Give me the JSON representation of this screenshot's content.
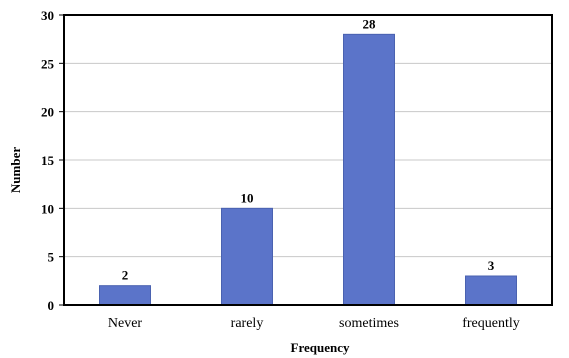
{
  "chart_data": {
    "type": "bar",
    "categories": [
      "Never",
      "rarely",
      "sometimes",
      "frequently"
    ],
    "values": [
      2,
      10,
      28,
      3
    ],
    "data_labels": [
      "2",
      "10",
      "28",
      "3"
    ],
    "xlabel": "Frequency",
    "ylabel": "Number",
    "ylim": [
      0,
      30
    ],
    "yticks": [
      0,
      5,
      10,
      15,
      20,
      25,
      30
    ],
    "grid": true,
    "legend": "none",
    "colors": {
      "bar": "#5b74c9",
      "bar_edge": "#4a62b0",
      "grid": "#c8c8c8",
      "frame": "#000000"
    }
  }
}
